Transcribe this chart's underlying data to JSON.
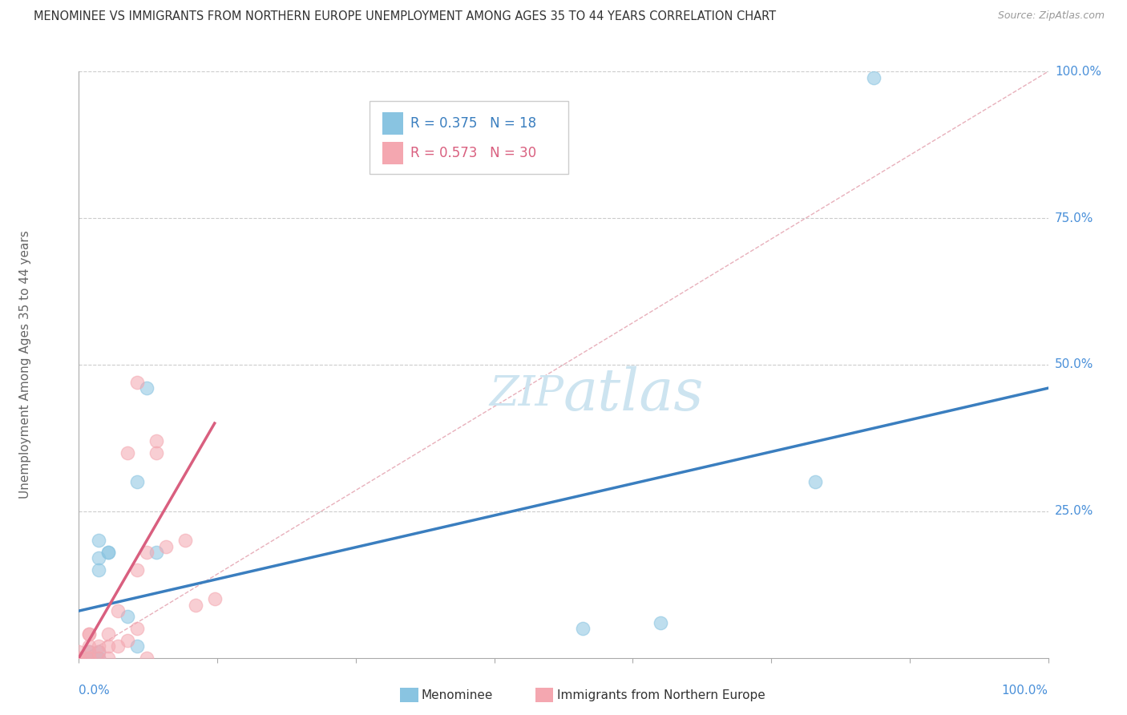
{
  "title": "MENOMINEE VS IMMIGRANTS FROM NORTHERN EUROPE UNEMPLOYMENT AMONG AGES 35 TO 44 YEARS CORRELATION CHART",
  "source": "Source: ZipAtlas.com",
  "ylabel": "Unemployment Among Ages 35 to 44 years",
  "menominee_color": "#89c4e1",
  "immigrants_color": "#f4a7b0",
  "trendline_blue": "#3a7ebf",
  "trendline_pink": "#d95f7f",
  "diagonal_color": "#e8b0bb",
  "watermark_color": "#cde4f0",
  "background": "#ffffff",
  "grid_color": "#cccccc",
  "tick_label_color": "#4a90d9",
  "legend_R_color": "#4a90d9",
  "legend_N_color": "#333333",
  "menominee_x": [
    1,
    1,
    2,
    2,
    2,
    2,
    2,
    3,
    3,
    5,
    6,
    6,
    7,
    8,
    52,
    60,
    76,
    82
  ],
  "menominee_y": [
    0,
    1,
    0,
    1,
    15,
    17,
    20,
    18,
    18,
    7,
    2,
    30,
    46,
    18,
    5,
    6,
    30,
    99
  ],
  "immigrants_x": [
    0,
    0,
    0,
    1,
    1,
    1,
    1,
    1,
    1,
    2,
    2,
    2,
    3,
    3,
    3,
    4,
    4,
    5,
    5,
    6,
    6,
    6,
    7,
    7,
    8,
    8,
    9,
    11,
    12,
    14
  ],
  "immigrants_y": [
    0,
    0,
    1,
    0,
    0,
    1,
    2,
    4,
    4,
    0,
    1,
    2,
    0,
    2,
    4,
    2,
    8,
    3,
    35,
    47,
    5,
    15,
    0,
    18,
    35,
    37,
    19,
    20,
    9,
    10
  ],
  "blue_trend": [
    0,
    100,
    8,
    46
  ],
  "pink_trend": [
    0,
    14,
    0,
    40
  ],
  "diagonal": [
    0,
    100,
    0,
    100
  ],
  "xlim": [
    0,
    100
  ],
  "ylim": [
    0,
    100
  ],
  "yticks": [
    25,
    50,
    75,
    100
  ],
  "ytick_labels": [
    "25.0%",
    "50.0%",
    "75.0%",
    "100.0%"
  ],
  "xtick_labels_show": [
    "0.0%",
    "100.0%"
  ],
  "legend1_R": "R = 0.375",
  "legend1_N": "N = 18",
  "legend2_R": "R = 0.573",
  "legend2_N": "N = 30"
}
